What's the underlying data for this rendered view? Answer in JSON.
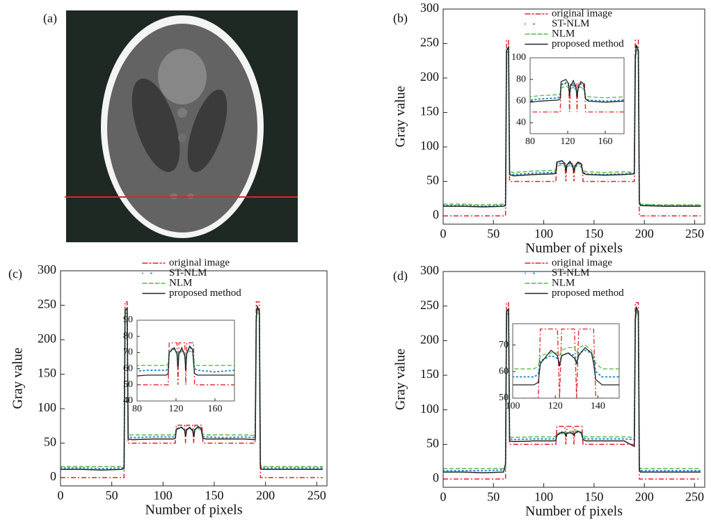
{
  "image": {
    "label": "(a)"
  },
  "chart_data": [
    {
      "type": "line",
      "panel_label": "(b)",
      "xlabel": "Number of pixels",
      "ylabel": "Gray value",
      "xlim": [
        0,
        260
      ],
      "ylim": [
        -12,
        300
      ],
      "xticks": [
        0,
        50,
        100,
        150,
        200,
        250
      ],
      "yticks": [
        0,
        50,
        100,
        150,
        200,
        250,
        300
      ],
      "grid": false,
      "legend": "upper center",
      "x": [
        0,
        20,
        40,
        60,
        62,
        63,
        65,
        66,
        70,
        90,
        110,
        112,
        113,
        118,
        121,
        122,
        123,
        126,
        129,
        130,
        131,
        134,
        137,
        138,
        139,
        142,
        160,
        180,
        190,
        191,
        192,
        194,
        195,
        196,
        220,
        256
      ],
      "series": [
        {
          "name": "original image",
          "color": "#e0202a",
          "style": "dashdot",
          "values": [
            0,
            0,
            0,
            0,
            0,
            255,
            255,
            50,
            50,
            50,
            50,
            50,
            76,
            76,
            76,
            50,
            76,
            76,
            76,
            50,
            76,
            76,
            76,
            76,
            50,
            50,
            50,
            50,
            50,
            255,
            255,
            255,
            0,
            0,
            0,
            0
          ]
        },
        {
          "name": "ST-NLM",
          "color": "#2a8fc8",
          "style": "dotted",
          "values": [
            15,
            15,
            14,
            15,
            16,
            238,
            243,
            61,
            60,
            62,
            63,
            64,
            75,
            77,
            74,
            66,
            72,
            76,
            70,
            65,
            71,
            76,
            74,
            68,
            63,
            61,
            60,
            61,
            62,
            228,
            245,
            238,
            21,
            16,
            15,
            15
          ]
        },
        {
          "name": "NLM",
          "color": "#5ab84a",
          "style": "dashed",
          "values": [
            17,
            17,
            16,
            17,
            18,
            235,
            240,
            64,
            63,
            65,
            66,
            67,
            72,
            74,
            72,
            68,
            71,
            73,
            70,
            66,
            70,
            73,
            71,
            69,
            66,
            64,
            63,
            64,
            63,
            225,
            240,
            235,
            22,
            17,
            16,
            16
          ]
        },
        {
          "name": "proposed method",
          "color": "#222222",
          "style": "solid",
          "values": [
            14,
            14,
            13,
            14,
            15,
            240,
            245,
            60,
            58,
            60,
            61,
            62,
            78,
            80,
            76,
            65,
            74,
            79,
            72,
            64,
            72,
            78,
            76,
            70,
            62,
            60,
            59,
            60,
            61,
            230,
            248,
            240,
            20,
            15,
            14,
            14
          ]
        }
      ],
      "inset": {
        "xlim": [
          80,
          180
        ],
        "ylim": [
          30,
          100
        ],
        "xticks": [
          80,
          120,
          160
        ],
        "yticks": [
          40,
          60,
          80,
          100
        ]
      }
    },
    {
      "type": "line",
      "panel_label": "(c)",
      "xlabel": "Number of pixels",
      "ylabel": "Gray value",
      "xlim": [
        0,
        260
      ],
      "ylim": [
        -12,
        300
      ],
      "xticks": [
        0,
        50,
        100,
        150,
        200,
        250
      ],
      "yticks": [
        0,
        50,
        100,
        150,
        200,
        250,
        300
      ],
      "grid": false,
      "legend": "upper center",
      "x": [
        0,
        20,
        40,
        60,
        62,
        63,
        65,
        66,
        70,
        90,
        110,
        112,
        113,
        118,
        121,
        122,
        123,
        126,
        129,
        130,
        131,
        134,
        137,
        138,
        139,
        142,
        160,
        180,
        190,
        191,
        192,
        194,
        195,
        196,
        220,
        256
      ],
      "series": [
        {
          "name": "original image",
          "color": "#e0202a",
          "style": "dashdot",
          "values": [
            0,
            0,
            0,
            0,
            0,
            255,
            255,
            50,
            50,
            50,
            50,
            50,
            76,
            76,
            76,
            50,
            76,
            76,
            76,
            50,
            76,
            76,
            76,
            76,
            50,
            50,
            50,
            50,
            50,
            255,
            255,
            255,
            0,
            0,
            0,
            0
          ]
        },
        {
          "name": "ST-NLM",
          "color": "#2a8fc8",
          "style": "dotted",
          "values": [
            14,
            14,
            13,
            14,
            15,
            240,
            244,
            59,
            58,
            59,
            59,
            60,
            71,
            73,
            70,
            64,
            70,
            72,
            69,
            62,
            70,
            73,
            72,
            66,
            60,
            59,
            58,
            59,
            58,
            230,
            246,
            240,
            18,
            14,
            14,
            14
          ]
        },
        {
          "name": "NLM",
          "color": "#5ab84a",
          "style": "dashed",
          "values": [
            16,
            16,
            16,
            16,
            17,
            236,
            242,
            62,
            62,
            62,
            62,
            63,
            70,
            72,
            70,
            66,
            69,
            71,
            68,
            64,
            69,
            71,
            70,
            67,
            63,
            62,
            62,
            62,
            61,
            226,
            242,
            236,
            20,
            16,
            16,
            16
          ]
        },
        {
          "name": "proposed method",
          "color": "#222222",
          "style": "solid",
          "values": [
            12,
            12,
            11,
            12,
            13,
            242,
            246,
            56,
            55,
            56,
            56,
            57,
            70,
            73,
            69,
            60,
            69,
            73,
            68,
            59,
            69,
            74,
            72,
            64,
            57,
            56,
            56,
            56,
            55,
            232,
            248,
            242,
            16,
            12,
            12,
            12
          ]
        }
      ],
      "inset": {
        "xlim": [
          80,
          180
        ],
        "ylim": [
          40,
          90
        ],
        "xticks": [
          80,
          120,
          160
        ],
        "yticks": [
          40,
          50,
          60,
          70,
          80,
          90
        ]
      }
    },
    {
      "type": "line",
      "panel_label": "(d)",
      "xlabel": "Number of pixels",
      "ylabel": "Gray value",
      "xlim": [
        0,
        260
      ],
      "ylim": [
        -12,
        300
      ],
      "xticks": [
        0,
        50,
        100,
        150,
        200,
        250
      ],
      "yticks": [
        0,
        50,
        100,
        150,
        200,
        250,
        300
      ],
      "grid": false,
      "legend": "upper center",
      "x": [
        0,
        20,
        40,
        60,
        62,
        63,
        65,
        66,
        70,
        90,
        110,
        112,
        113,
        118,
        121,
        122,
        123,
        126,
        129,
        130,
        131,
        134,
        137,
        138,
        139,
        142,
        160,
        180,
        190,
        191,
        192,
        194,
        195,
        196,
        220,
        256
      ],
      "series": [
        {
          "name": "original image",
          "color": "#e0202a",
          "style": "dashdot",
          "values": [
            0,
            0,
            0,
            0,
            0,
            255,
            255,
            50,
            50,
            50,
            50,
            50,
            76,
            76,
            76,
            50,
            76,
            76,
            76,
            50,
            76,
            76,
            76,
            76,
            50,
            50,
            50,
            50,
            50,
            255,
            255,
            255,
            0,
            0,
            0,
            0
          ]
        },
        {
          "name": "ST-NLM",
          "color": "#2a8fc8",
          "style": "dotted",
          "values": [
            12,
            12,
            12,
            13,
            14,
            240,
            244,
            58,
            57,
            58,
            58,
            59,
            64,
            66,
            65,
            63,
            66,
            67,
            66,
            64,
            67,
            68,
            67,
            65,
            60,
            58,
            58,
            58,
            57,
            230,
            246,
            240,
            16,
            12,
            12,
            12
          ]
        },
        {
          "name": "NLM",
          "color": "#5ab84a",
          "style": "dashed",
          "values": [
            15,
            15,
            15,
            15,
            16,
            236,
            242,
            61,
            60,
            61,
            61,
            62,
            66,
            67,
            67,
            66,
            68,
            69,
            69,
            67,
            69,
            70,
            68,
            66,
            63,
            61,
            61,
            61,
            60,
            226,
            242,
            236,
            18,
            15,
            15,
            15
          ]
        },
        {
          "name": "proposed method",
          "color": "#222222",
          "style": "solid",
          "values": [
            10,
            10,
            9,
            10,
            22,
            242,
            246,
            55,
            54,
            55,
            55,
            56,
            63,
            68,
            66,
            62,
            66,
            67,
            65,
            63,
            66,
            69,
            67,
            63,
            57,
            55,
            55,
            55,
            47,
            232,
            248,
            242,
            14,
            10,
            10,
            10
          ]
        }
      ],
      "inset": {
        "xlim": [
          100,
          150
        ],
        "ylim": [
          50,
          78
        ],
        "xticks": [
          100,
          120,
          140
        ],
        "yticks": [
          50,
          60,
          70
        ]
      }
    }
  ]
}
